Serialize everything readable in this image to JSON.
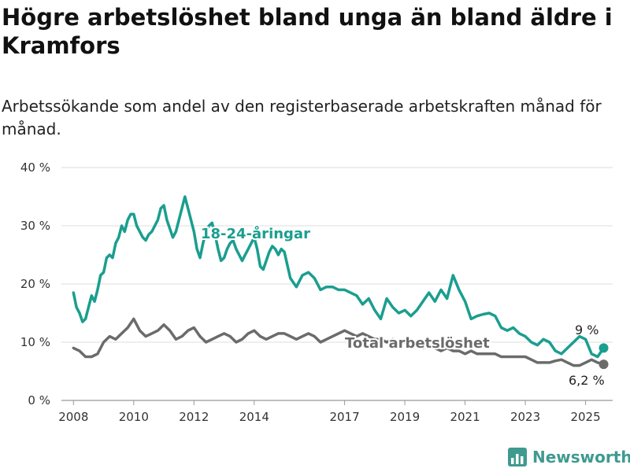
{
  "title": "Högre arbetslöshet bland unga än bland äldre i Kramfors",
  "subtitle": "Arbetssökande som andel av den registerbaserade arbetskraften månad för månad.",
  "brand": {
    "name": "Newsworthy",
    "icon": "bar-chart-logo-icon"
  },
  "colors": {
    "youth": "#1a9e8f",
    "total": "#6b6b6b",
    "grid": "#dcdcdc",
    "brand": "#3f9a8f"
  },
  "chart_data": {
    "type": "line",
    "ylim": [
      0,
      40
    ],
    "yticks": [
      0,
      10,
      20,
      30,
      40
    ],
    "ytick_labels": [
      "0 %",
      "10 %",
      "20 %",
      "30 %",
      "40 %"
    ],
    "xlim": [
      2007.6,
      2025.9
    ],
    "xticks": [
      2008,
      2010,
      2012,
      2014,
      2017,
      2019,
      2021,
      2023,
      2025
    ],
    "xtick_labels": [
      "2008",
      "2010",
      "2012",
      "2014",
      "2017",
      "2019",
      "2021",
      "2023",
      "2025"
    ],
    "grid": true,
    "legend": "inline",
    "series": [
      {
        "name": "18-24-åringar",
        "end_label": "9 %",
        "end_value": 9,
        "x": [
          2008.0,
          2008.1,
          2008.2,
          2008.3,
          2008.4,
          2008.5,
          2008.6,
          2008.7,
          2008.8,
          2008.9,
          2009.0,
          2009.1,
          2009.2,
          2009.3,
          2009.4,
          2009.5,
          2009.6,
          2009.7,
          2009.8,
          2009.9,
          2010.0,
          2010.1,
          2010.2,
          2010.3,
          2010.4,
          2010.5,
          2010.6,
          2010.7,
          2010.8,
          2010.9,
          2011.0,
          2011.1,
          2011.2,
          2011.3,
          2011.4,
          2011.5,
          2011.6,
          2011.7,
          2011.8,
          2011.9,
          2012.0,
          2012.1,
          2012.2,
          2012.3,
          2012.4,
          2012.5,
          2012.6,
          2012.7,
          2012.8,
          2012.9,
          2013.0,
          2013.1,
          2013.2,
          2013.3,
          2013.4,
          2013.5,
          2013.6,
          2013.7,
          2013.8,
          2013.9,
          2014.0,
          2014.1,
          2014.2,
          2014.3,
          2014.4,
          2014.5,
          2014.6,
          2014.7,
          2014.8,
          2014.9,
          2015.0,
          2015.2,
          2015.4,
          2015.6,
          2015.8,
          2016.0,
          2016.2,
          2016.4,
          2016.6,
          2016.8,
          2017.0,
          2017.2,
          2017.4,
          2017.6,
          2017.8,
          2018.0,
          2018.2,
          2018.4,
          2018.6,
          2018.8,
          2019.0,
          2019.2,
          2019.4,
          2019.6,
          2019.8,
          2020.0,
          2020.2,
          2020.4,
          2020.6,
          2020.8,
          2021.0,
          2021.2,
          2021.4,
          2021.6,
          2021.8,
          2022.0,
          2022.2,
          2022.4,
          2022.6,
          2022.8,
          2023.0,
          2023.2,
          2023.4,
          2023.6,
          2023.8,
          2024.0,
          2024.2,
          2024.4,
          2024.6,
          2024.8,
          2025.0,
          2025.2,
          2025.4,
          2025.6
        ],
        "values": [
          18.5,
          16.0,
          15.0,
          13.5,
          14.0,
          16.0,
          18.0,
          17.0,
          19.0,
          21.5,
          22.0,
          24.5,
          25.0,
          24.5,
          27.0,
          28.0,
          30.0,
          29.0,
          31.0,
          32.0,
          32.0,
          30.0,
          29.0,
          28.0,
          27.5,
          28.5,
          29.0,
          30.0,
          31.0,
          33.0,
          33.5,
          31.0,
          29.5,
          28.0,
          29.0,
          31.0,
          33.0,
          35.0,
          33.0,
          31.0,
          29.0,
          26.0,
          24.5,
          27.0,
          29.0,
          30.0,
          30.5,
          28.5,
          26.0,
          24.0,
          24.5,
          26.0,
          27.0,
          27.5,
          26.0,
          25.0,
          24.0,
          25.0,
          26.0,
          27.0,
          28.0,
          26.0,
          23.0,
          22.5,
          24.0,
          25.5,
          26.5,
          26.0,
          25.0,
          26.0,
          25.5,
          21.0,
          19.5,
          21.5,
          22.0,
          21.0,
          19.0,
          19.5,
          19.5,
          19.0,
          19.0,
          18.5,
          18.0,
          16.5,
          17.5,
          15.5,
          14.0,
          17.5,
          16.0,
          15.0,
          15.5,
          14.5,
          15.5,
          17.0,
          18.5,
          17.0,
          19.0,
          17.5,
          21.5,
          19.0,
          17.0,
          14.0,
          14.5,
          14.8,
          15.0,
          14.5,
          12.5,
          12.0,
          12.5,
          11.5,
          11.0,
          10.0,
          9.5,
          10.5,
          10.0,
          8.5,
          8.0,
          9.0,
          10.0,
          11.0,
          10.5,
          8.0,
          7.5,
          9.0
        ]
      },
      {
        "name": "Total arbetslöshet",
        "end_label": "6,2 %",
        "end_value": 6.2,
        "x": [
          2008.0,
          2008.2,
          2008.4,
          2008.6,
          2008.8,
          2009.0,
          2009.2,
          2009.4,
          2009.6,
          2009.8,
          2010.0,
          2010.2,
          2010.4,
          2010.6,
          2010.8,
          2011.0,
          2011.2,
          2011.4,
          2011.6,
          2011.8,
          2012.0,
          2012.2,
          2012.4,
          2012.6,
          2012.8,
          2013.0,
          2013.2,
          2013.4,
          2013.6,
          2013.8,
          2014.0,
          2014.2,
          2014.4,
          2014.6,
          2014.8,
          2015.0,
          2015.2,
          2015.4,
          2015.6,
          2015.8,
          2016.0,
          2016.2,
          2016.4,
          2016.6,
          2016.8,
          2017.0,
          2017.2,
          2017.4,
          2017.6,
          2017.8,
          2018.0,
          2018.2,
          2018.4,
          2018.6,
          2018.8,
          2019.0,
          2019.2,
          2019.4,
          2019.6,
          2019.8,
          2020.0,
          2020.2,
          2020.4,
          2020.6,
          2020.8,
          2021.0,
          2021.2,
          2021.4,
          2021.6,
          2021.8,
          2022.0,
          2022.2,
          2022.4,
          2022.6,
          2022.8,
          2023.0,
          2023.2,
          2023.4,
          2023.6,
          2023.8,
          2024.0,
          2024.2,
          2024.4,
          2024.6,
          2024.8,
          2025.0,
          2025.2,
          2025.4,
          2025.6
        ],
        "values": [
          9.0,
          8.5,
          7.5,
          7.5,
          8.0,
          10.0,
          11.0,
          10.5,
          11.5,
          12.5,
          14.0,
          12.0,
          11.0,
          11.5,
          12.0,
          13.0,
          12.0,
          10.5,
          11.0,
          12.0,
          12.5,
          11.0,
          10.0,
          10.5,
          11.0,
          11.5,
          11.0,
          10.0,
          10.5,
          11.5,
          12.0,
          11.0,
          10.5,
          11.0,
          11.5,
          11.5,
          11.0,
          10.5,
          11.0,
          11.5,
          11.0,
          10.0,
          10.5,
          11.0,
          11.5,
          12.0,
          11.5,
          11.0,
          11.5,
          11.0,
          10.5,
          10.5,
          10.0,
          10.5,
          10.0,
          10.0,
          9.5,
          9.5,
          9.0,
          9.5,
          9.0,
          8.5,
          9.0,
          8.5,
          8.5,
          8.0,
          8.5,
          8.0,
          8.0,
          8.0,
          8.0,
          7.5,
          7.5,
          7.5,
          7.5,
          7.5,
          7.0,
          6.5,
          6.5,
          6.5,
          6.8,
          7.0,
          6.5,
          6.0,
          6.0,
          6.5,
          7.0,
          6.5,
          6.2
        ]
      }
    ]
  }
}
